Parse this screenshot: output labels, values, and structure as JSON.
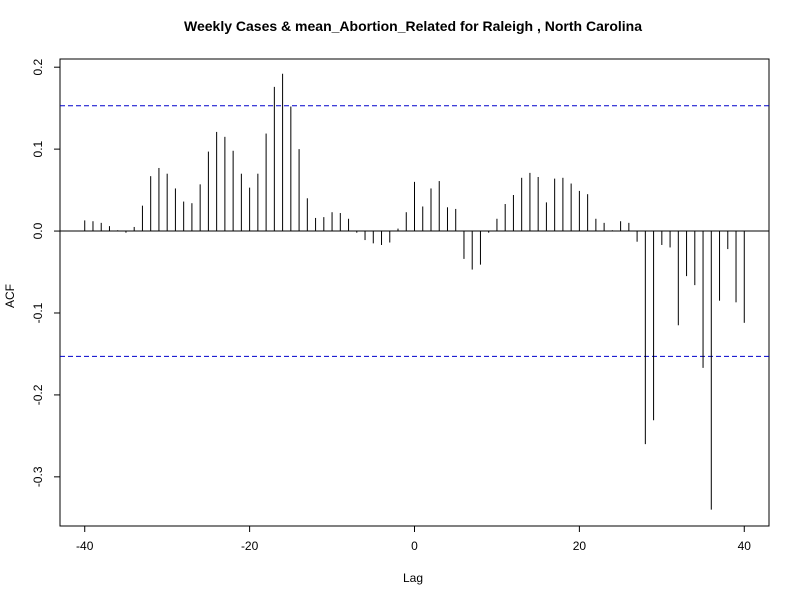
{
  "chart_data": {
    "type": "bar",
    "subtype": "acf-lollipop",
    "title": "Weekly Cases & mean_Abortion_Related for Raleigh , North Carolina",
    "xlabel": "Lag",
    "ylabel": "ACF",
    "xlim": [
      -43,
      43
    ],
    "ylim": [
      -0.36,
      0.21
    ],
    "x_ticks": [
      -40,
      -20,
      0,
      20,
      40
    ],
    "x_tick_labels": [
      "-40",
      "-20",
      "0",
      "20",
      "40"
    ],
    "y_ticks": [
      -0.3,
      -0.2,
      -0.1,
      0.0,
      0.1,
      0.2
    ],
    "y_tick_labels": [
      "-0.3",
      "-0.2",
      "-0.1",
      "0.0",
      "0.1",
      "0.2"
    ],
    "confidence_band": [
      0.153,
      -0.153
    ],
    "zero_line": 0,
    "colors": {
      "bars": "#000000",
      "confidence": "#0000cc",
      "frame": "#000000"
    },
    "lags": [
      -40,
      -39,
      -38,
      -37,
      -36,
      -35,
      -34,
      -33,
      -32,
      -31,
      -30,
      -29,
      -28,
      -27,
      -26,
      -25,
      -24,
      -23,
      -22,
      -21,
      -20,
      -19,
      -18,
      -17,
      -16,
      -15,
      -14,
      -13,
      -12,
      -11,
      -10,
      -9,
      -8,
      -7,
      -6,
      -5,
      -4,
      -3,
      -2,
      -1,
      0,
      1,
      2,
      3,
      4,
      5,
      6,
      7,
      8,
      9,
      10,
      11,
      12,
      13,
      14,
      15,
      16,
      17,
      18,
      19,
      20,
      21,
      22,
      23,
      24,
      25,
      26,
      27,
      28,
      29,
      30,
      31,
      32,
      33,
      34,
      35,
      36,
      37,
      38,
      39,
      40
    ],
    "values": [
      0.013,
      0.012,
      0.01,
      0.006,
      0.001,
      -0.002,
      0.005,
      0.031,
      0.067,
      0.077,
      0.07,
      0.052,
      0.036,
      0.034,
      0.057,
      0.097,
      0.121,
      0.115,
      0.098,
      0.07,
      0.053,
      0.07,
      0.119,
      0.176,
      0.192,
      0.152,
      0.1,
      0.04,
      0.016,
      0.017,
      0.023,
      0.022,
      0.015,
      -0.002,
      -0.011,
      -0.015,
      -0.017,
      -0.014,
      0.003,
      0.023,
      0.06,
      0.03,
      0.052,
      0.061,
      0.029,
      0.027,
      -0.034,
      -0.047,
      -0.041,
      -0.002,
      0.015,
      0.033,
      0.044,
      0.065,
      0.071,
      0.066,
      0.035,
      0.064,
      0.065,
      0.058,
      0.049,
      0.045,
      0.015,
      0.01,
      0.001,
      0.012,
      0.01,
      -0.013,
      -0.26,
      -0.231,
      -0.017,
      -0.02,
      -0.115,
      -0.055,
      -0.066,
      -0.167,
      -0.34,
      -0.085,
      -0.022,
      -0.087,
      -0.112
    ]
  }
}
